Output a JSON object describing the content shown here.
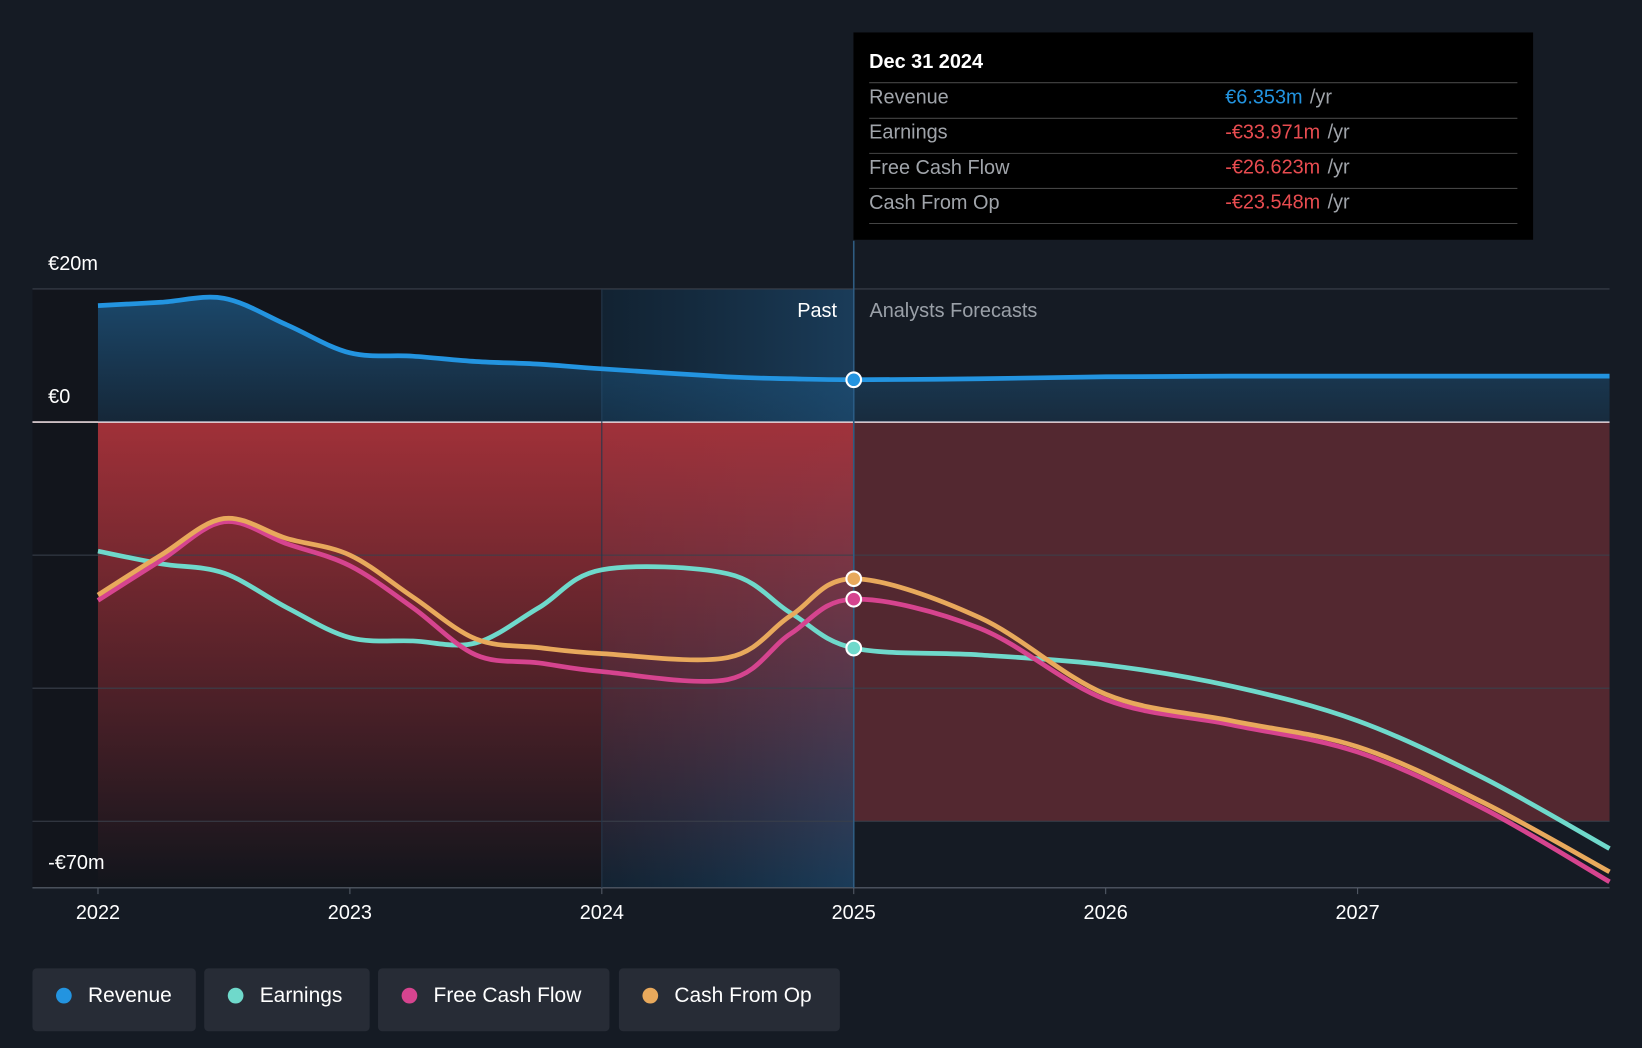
{
  "chart_data": {
    "type": "line",
    "x": [
      2022,
      2022.25,
      2022.5,
      2022.75,
      2023,
      2023.25,
      2023.5,
      2023.75,
      2024,
      2024.5,
      2024.75,
      2025,
      2025.5,
      2026,
      2026.5,
      2027,
      2027.5,
      2028
    ],
    "series": [
      {
        "name": "Revenue",
        "color": "#2394e0",
        "values": [
          17.5,
          18.0,
          18.6,
          14.6,
          10.4,
          9.9,
          9.1,
          8.7,
          8.0,
          6.8,
          6.5,
          6.353,
          6.5,
          6.8,
          6.9,
          6.9,
          6.9,
          6.9
        ]
      },
      {
        "name": "Earnings",
        "color": "#6fd9cb",
        "values": [
          -19.4,
          -21.3,
          -22.7,
          -27.9,
          -32.4,
          -32.9,
          -33.2,
          -27.9,
          -22.2,
          -22.8,
          -28.7,
          -33.971,
          -35.0,
          -36.5,
          -39.7,
          -44.9,
          -53.5,
          -64.1
        ]
      },
      {
        "name": "Free Cash Flow",
        "color": "#d6448f",
        "values": [
          -26.8,
          -20.8,
          -15.0,
          -18.3,
          -21.6,
          -27.9,
          -35.0,
          -36.2,
          -37.5,
          -38.7,
          -31.8,
          -26.623,
          -31.0,
          -41.7,
          -45.5,
          -49.6,
          -58.1,
          -69.1
        ]
      },
      {
        "name": "Cash From Op",
        "color": "#e8a95c",
        "values": [
          -26.0,
          -20.0,
          -14.5,
          -17.5,
          -20.0,
          -26.3,
          -32.6,
          -33.9,
          -34.8,
          -35.4,
          -29.1,
          -23.548,
          -29.4,
          -40.9,
          -44.9,
          -48.8,
          -57.2,
          -67.6
        ]
      }
    ],
    "xlim": [
      2021.74,
      2028
    ],
    "xticks": [
      2022,
      2023,
      2024,
      2025,
      2026,
      2027
    ],
    "ylim": [
      -70,
      20
    ],
    "yticks": [
      {
        "value": 20,
        "label": "€20m"
      },
      {
        "value": 0,
        "label": "€0"
      },
      {
        "value": -20,
        "label": null
      },
      {
        "value": -40,
        "label": null
      },
      {
        "value": -60,
        "label": null
      },
      {
        "value": -70,
        "label": "-€70m"
      }
    ],
    "grid": true,
    "annotations": {
      "past": "Past",
      "forecast": "Analysts Forecasts"
    }
  },
  "tooltip": {
    "title": "Dec 31 2024",
    "rows": [
      {
        "label": "Revenue",
        "value": "€6.353m",
        "unit": "/yr",
        "color": "#2394e0"
      },
      {
        "label": "Earnings",
        "value": "-€33.971m",
        "unit": "/yr",
        "color": "#e84c50"
      },
      {
        "label": "Free Cash Flow",
        "value": "-€26.623m",
        "unit": "/yr",
        "color": "#e84c50"
      },
      {
        "label": "Cash From Op",
        "value": "-€23.548m",
        "unit": "/yr",
        "color": "#e84c50"
      }
    ]
  }
}
